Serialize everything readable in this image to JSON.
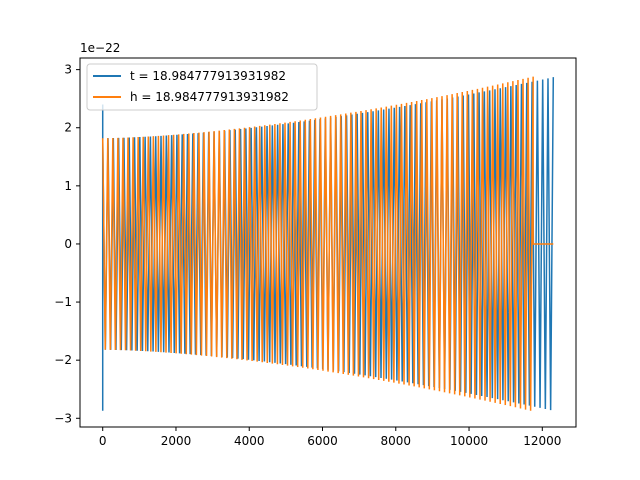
{
  "chart_data": {
    "type": "line",
    "title": "",
    "xlabel": "",
    "ylabel": "",
    "y_offset_label": "1e−22",
    "xlim": [
      -620,
      12920
    ],
    "ylim": [
      -3.15,
      3.2
    ],
    "x_ticks": [
      0,
      2000,
      4000,
      6000,
      8000,
      10000,
      12000
    ],
    "x_tick_labels": [
      "0",
      "2000",
      "4000",
      "6000",
      "8000",
      "10000",
      "12000"
    ],
    "y_ticks": [
      -3,
      -2,
      -1,
      0,
      1,
      2,
      3
    ],
    "y_tick_labels": [
      "−3",
      "−2",
      "−1",
      "0",
      "1",
      "2",
      "3"
    ],
    "grid": false,
    "legend_position": "top-left",
    "series": [
      {
        "name": "t = 18.984777913931982",
        "color": "#1f77b4",
        "x_start": 0,
        "x_end": 12300,
        "amplitude_start": 1.82,
        "amplitude_end": 2.87,
        "start_spike": [
          2.4,
          -2.87
        ],
        "trailing_flat": null
      },
      {
        "name": "h = 18.984777913931982",
        "color": "#ff7f0e",
        "x_start": 0,
        "x_end": 11750,
        "amplitude_start": 1.82,
        "amplitude_end": 2.88,
        "start_spike": null,
        "trailing_flat": [
          11750,
          12300
        ]
      }
    ]
  }
}
